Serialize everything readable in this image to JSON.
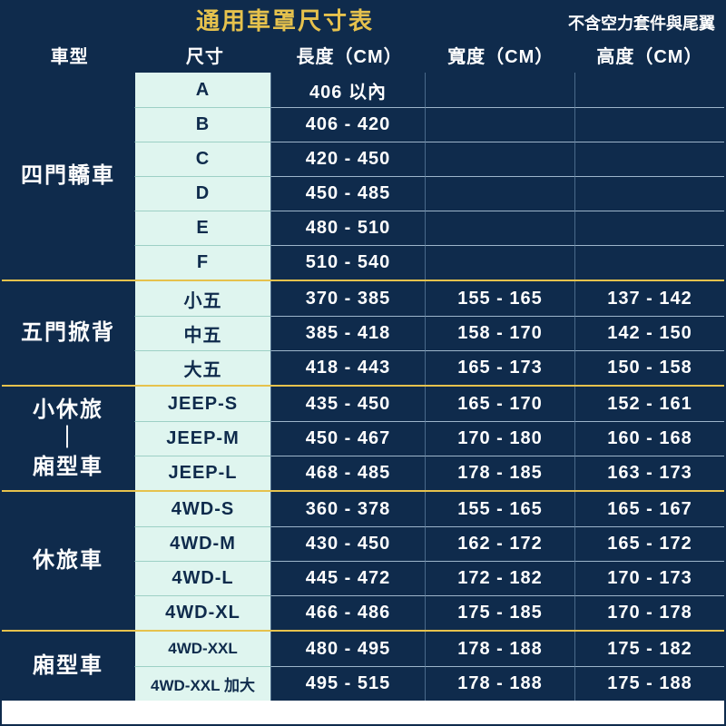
{
  "title": "通用車罩尺寸表",
  "subtitle": "不含空力套件與尾翼",
  "title_color": "#e6c24d",
  "headers": {
    "type": "車型",
    "size": "尺寸",
    "length": "長度（CM）",
    "width": "寬度（CM）",
    "height": "高度（CM）"
  },
  "colors": {
    "dark_bg": "#0f2b4c",
    "accent": "#e6c24d",
    "size_bg": "#dff5ef",
    "row_divider_light": "#9db5ca",
    "row_divider_mint": "#9dd0c5"
  },
  "groups": [
    {
      "label": "四門轎車",
      "rows": [
        {
          "size": "A",
          "length": "406 以內",
          "width": "",
          "height": ""
        },
        {
          "size": "B",
          "length": "406 - 420",
          "width": "",
          "height": ""
        },
        {
          "size": "C",
          "length": "420 - 450",
          "width": "",
          "height": ""
        },
        {
          "size": "D",
          "length": "450 - 485",
          "width": "",
          "height": ""
        },
        {
          "size": "E",
          "length": "480 - 510",
          "width": "",
          "height": ""
        },
        {
          "size": "F",
          "length": "510 - 540",
          "width": "",
          "height": ""
        }
      ]
    },
    {
      "label": "五門掀背",
      "rows": [
        {
          "size": "小五",
          "length": "370 - 385",
          "width": "155 - 165",
          "height": "137 - 142"
        },
        {
          "size": "中五",
          "length": "385 - 418",
          "width": "158 - 170",
          "height": "142 - 150"
        },
        {
          "size": "大五",
          "length": "418 - 443",
          "width": "165 - 173",
          "height": "150 - 158"
        }
      ]
    },
    {
      "label": "小休旅\n｜\n廂型車",
      "rows": [
        {
          "size": "JEEP-S",
          "length": "435 - 450",
          "width": "165 - 170",
          "height": "152 - 161"
        },
        {
          "size": "JEEP-M",
          "length": "450 - 467",
          "width": "170 - 180",
          "height": "160 - 168"
        },
        {
          "size": "JEEP-L",
          "length": "468 - 485",
          "width": "178 - 185",
          "height": "163 - 173"
        }
      ]
    },
    {
      "label": "休旅車",
      "rows": [
        {
          "size": "4WD-S",
          "length": "360 - 378",
          "width": "155 - 165",
          "height": "165 - 167"
        },
        {
          "size": "4WD-M",
          "length": "430 - 450",
          "width": "162 - 172",
          "height": "165 - 172"
        },
        {
          "size": "4WD-L",
          "length": "445 - 472",
          "width": "172 - 182",
          "height": "170 - 173"
        },
        {
          "size": "4WD-XL",
          "length": "466 - 486",
          "width": "175 - 185",
          "height": "170 - 178"
        }
      ]
    },
    {
      "label": "廂型車",
      "rows": [
        {
          "size": "4WD-XXL",
          "length": "480 - 495",
          "width": "178 - 188",
          "height": "175 - 182",
          "small": true
        },
        {
          "size": "4WD-XXL 加大",
          "length": "495 - 515",
          "width": "178 - 188",
          "height": "175 - 188",
          "small": true
        }
      ]
    }
  ]
}
